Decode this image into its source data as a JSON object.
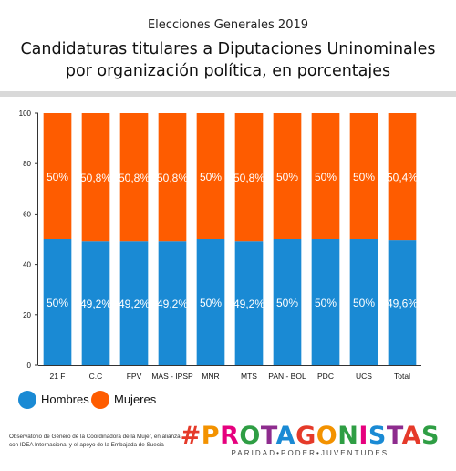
{
  "chart_data": {
    "type": "bar",
    "stacked": true,
    "subtitle": "Elecciones Generales 2019",
    "title": "Candidaturas titulares a Diputaciones  Uninominales por organización política, en  porcentajes",
    "categories": [
      "21 F",
      "C.C",
      "FPV",
      "MAS - IPSP",
      "MNR",
      "MTS",
      "PAN - BOL",
      "PDC",
      "UCS",
      "Total"
    ],
    "series": [
      {
        "name": "Hombres",
        "color": "#1a8ad4",
        "values": [
          50,
          49.2,
          49.2,
          49.2,
          50,
          49.2,
          50,
          50,
          50,
          49.6
        ],
        "labels": [
          "50%",
          "49,2%",
          "49,2%",
          "49,2%",
          "50%",
          "49,2%",
          "50%",
          "50%",
          "50%",
          "49,6%"
        ]
      },
      {
        "name": "Mujeres",
        "color": "#fe5c00",
        "values": [
          50,
          50.8,
          50.8,
          50.8,
          50,
          50.8,
          50,
          50,
          50,
          50.4
        ],
        "labels": [
          "50%",
          "50,8%",
          "50,8%",
          "50,8%",
          "50%",
          "50,8%",
          "50%",
          "50%",
          "50%",
          "50,4%"
        ]
      }
    ],
    "ylim": [
      0,
      100
    ],
    "yticks": [
      "0",
      "20",
      "40",
      "60",
      "80",
      "100"
    ],
    "grid": false,
    "legend_position": "bottom-left"
  },
  "footnote": {
    "line1": "Observatorio de Género de la Coordinadora de la Mujer, en alianza",
    "line2": "con IDEA Internacional y el apoyo de la Embajada de Suecia"
  },
  "brand": {
    "hashtag": "#PROTAGONISTAS",
    "tagline": "PARIDAD•PODER•JUVENTUDES",
    "letter_colors": [
      "#e53a2a",
      "#f39200",
      "#e6007e",
      "#2f9e44",
      "#8e2c8e",
      "#1a8ad4",
      "#e53a2a",
      "#f39200",
      "#2f9e44",
      "#e6007e",
      "#1a8ad4",
      "#8e2c8e",
      "#e53a2a",
      "#2f9e44"
    ]
  }
}
